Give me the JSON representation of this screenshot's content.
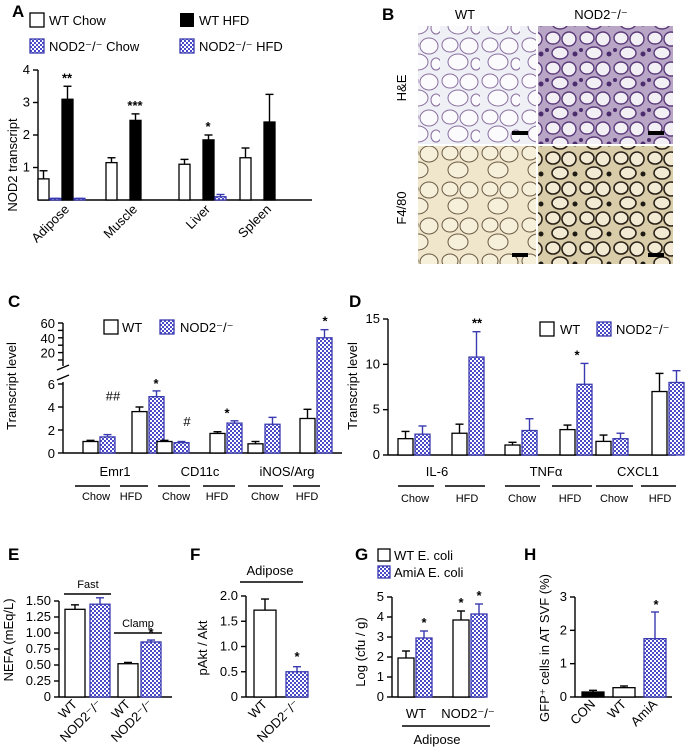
{
  "figure": {
    "panel_labels": [
      "A",
      "B",
      "C",
      "D",
      "E",
      "F",
      "G",
      "H"
    ]
  },
  "colors": {
    "wt": "#ffffff",
    "ko": "#5b5bd0",
    "hfd": "#000000",
    "outline": "#000000"
  },
  "chart_data": [
    {
      "id": "A",
      "type": "bar",
      "ylabel": "NOD2 transcript",
      "ylim": [
        0,
        4
      ],
      "yticks": [
        1,
        2,
        3,
        4
      ],
      "categories": [
        "Adipose",
        "Muscle",
        "Liver",
        "Spleen"
      ],
      "legend": [
        "WT Chow",
        "WT HFD",
        "NOD2⁻/⁻ Chow",
        "NOD2⁻/⁻ HFD"
      ],
      "series": [
        {
          "name": "WT Chow",
          "values": [
            0.65,
            1.15,
            1.1,
            1.3
          ],
          "errors": [
            0.25,
            0.15,
            0.15,
            0.3
          ]
        },
        {
          "name": "NOD2⁻/⁻ Chow",
          "values": [
            0.05,
            null,
            null,
            null
          ],
          "errors": [
            0,
            null,
            null,
            null
          ]
        },
        {
          "name": "WT HFD",
          "values": [
            3.1,
            2.45,
            1.85,
            2.4
          ],
          "errors": [
            0.4,
            0.2,
            0.15,
            0.85
          ]
        },
        {
          "name": "NOD2⁻/⁻ HFD",
          "values": [
            0.05,
            null,
            0.1,
            null
          ],
          "errors": [
            0,
            null,
            0.07,
            null
          ]
        }
      ],
      "significance": [
        "**",
        "***",
        "*",
        ""
      ]
    },
    {
      "id": "B",
      "type": "image-grid",
      "columns": [
        "WT",
        "NOD2⁻/⁻"
      ],
      "rows": [
        "H&E",
        "F4/80"
      ]
    },
    {
      "id": "C",
      "type": "bar",
      "ylabel": "Transcript level",
      "yticks_lower": [
        0,
        2,
        4,
        6
      ],
      "yticks_upper": [
        10,
        20,
        30,
        40,
        50,
        60
      ],
      "legend": [
        "WT",
        "NOD2⁻/⁻"
      ],
      "groups": [
        "Emr1",
        "CD11c",
        "iNOS/Arg"
      ],
      "subgroups": [
        "Chow",
        "HFD"
      ],
      "series": [
        {
          "name": "WT",
          "values": [
            1.0,
            3.6,
            1.0,
            1.7,
            0.8,
            3.0
          ],
          "errors": [
            0.1,
            0.4,
            0.1,
            0.15,
            0.2,
            0.8
          ]
        },
        {
          "name": "NOD2⁻/⁻",
          "values": [
            1.4,
            4.9,
            0.9,
            2.6,
            2.5,
            40
          ],
          "errors": [
            0.2,
            0.5,
            0.1,
            0.2,
            0.6,
            11
          ]
        }
      ],
      "marks": [
        "",
        "##",
        "*",
        "",
        "#",
        "*",
        "",
        "",
        "",
        "*"
      ]
    },
    {
      "id": "D",
      "type": "bar",
      "ylabel": "Transcript level",
      "ylim": [
        0,
        15
      ],
      "yticks": [
        0,
        5,
        10,
        15
      ],
      "legend": [
        "WT",
        "NOD2⁻/⁻"
      ],
      "groups": [
        "IL-6",
        "TNFα",
        "CXCL1"
      ],
      "subgroups": [
        "Chow",
        "HFD"
      ],
      "series": [
        {
          "name": "WT",
          "values": [
            1.8,
            2.4,
            1.1,
            2.8,
            1.5,
            7.0
          ],
          "errors": [
            0.8,
            1.0,
            0.3,
            0.5,
            0.7,
            2.0
          ]
        },
        {
          "name": "NOD2⁻/⁻",
          "values": [
            2.3,
            10.8,
            2.7,
            7.8,
            1.8,
            8.0
          ],
          "errors": [
            0.9,
            2.8,
            1.3,
            2.3,
            0.6,
            1.3
          ]
        }
      ],
      "marks": [
        "**",
        "*"
      ]
    },
    {
      "id": "E",
      "type": "bar",
      "ylabel": "NEFA (mEq/L)",
      "ylim": [
        0,
        1.5
      ],
      "yticks": [
        "0",
        "0.25",
        "0.50",
        "0.75",
        "1.00",
        "1.25",
        "1.50"
      ],
      "groups": [
        "Fast",
        "Clamp"
      ],
      "categories": [
        "WT",
        "NOD2⁻/⁻",
        "WT",
        "NOD2⁻/⁻"
      ],
      "values": [
        1.37,
        1.45,
        0.52,
        0.86
      ],
      "errors": [
        0.07,
        0.1,
        0.02,
        0.03
      ],
      "marks": [
        "*"
      ]
    },
    {
      "id": "F",
      "type": "bar",
      "ylabel": "pAkt / Akt",
      "ylim": [
        0,
        2
      ],
      "yticks": [
        "0",
        "0.5",
        "1.0",
        "1.5",
        "2.0"
      ],
      "group": "Adipose",
      "categories": [
        "WT",
        "NOD2⁻/⁻"
      ],
      "values": [
        1.72,
        0.5
      ],
      "errors": [
        0.22,
        0.1
      ],
      "marks": [
        "*"
      ]
    },
    {
      "id": "G",
      "type": "bar",
      "ylabel": "Log (cfu / g)",
      "ylim": [
        0,
        5
      ],
      "yticks": [
        0,
        1,
        2,
        3,
        4,
        5
      ],
      "legend": [
        "WT E. coli",
        "AmiA E. coli"
      ],
      "categories": [
        "WT",
        "NOD2⁻/⁻"
      ],
      "group": "Adipose",
      "series": [
        {
          "name": "WT E. coli",
          "values": [
            1.95,
            3.85
          ],
          "errors": [
            0.35,
            0.45
          ]
        },
        {
          "name": "AmiA E. coli",
          "values": [
            2.95,
            4.15
          ],
          "errors": [
            0.35,
            0.5
          ]
        }
      ],
      "marks": [
        "*",
        "*",
        "*"
      ]
    },
    {
      "id": "H",
      "type": "bar",
      "ylabel": "GFP⁺ cells in AT SVF (%)",
      "ylim": [
        0,
        3
      ],
      "yticks": [
        0,
        1,
        2,
        3
      ],
      "categories": [
        "CON",
        "WT",
        "AmiA"
      ],
      "values": [
        0.15,
        0.28,
        1.75
      ],
      "errors": [
        0.05,
        0.05,
        0.8
      ],
      "marks": [
        "*"
      ]
    }
  ]
}
